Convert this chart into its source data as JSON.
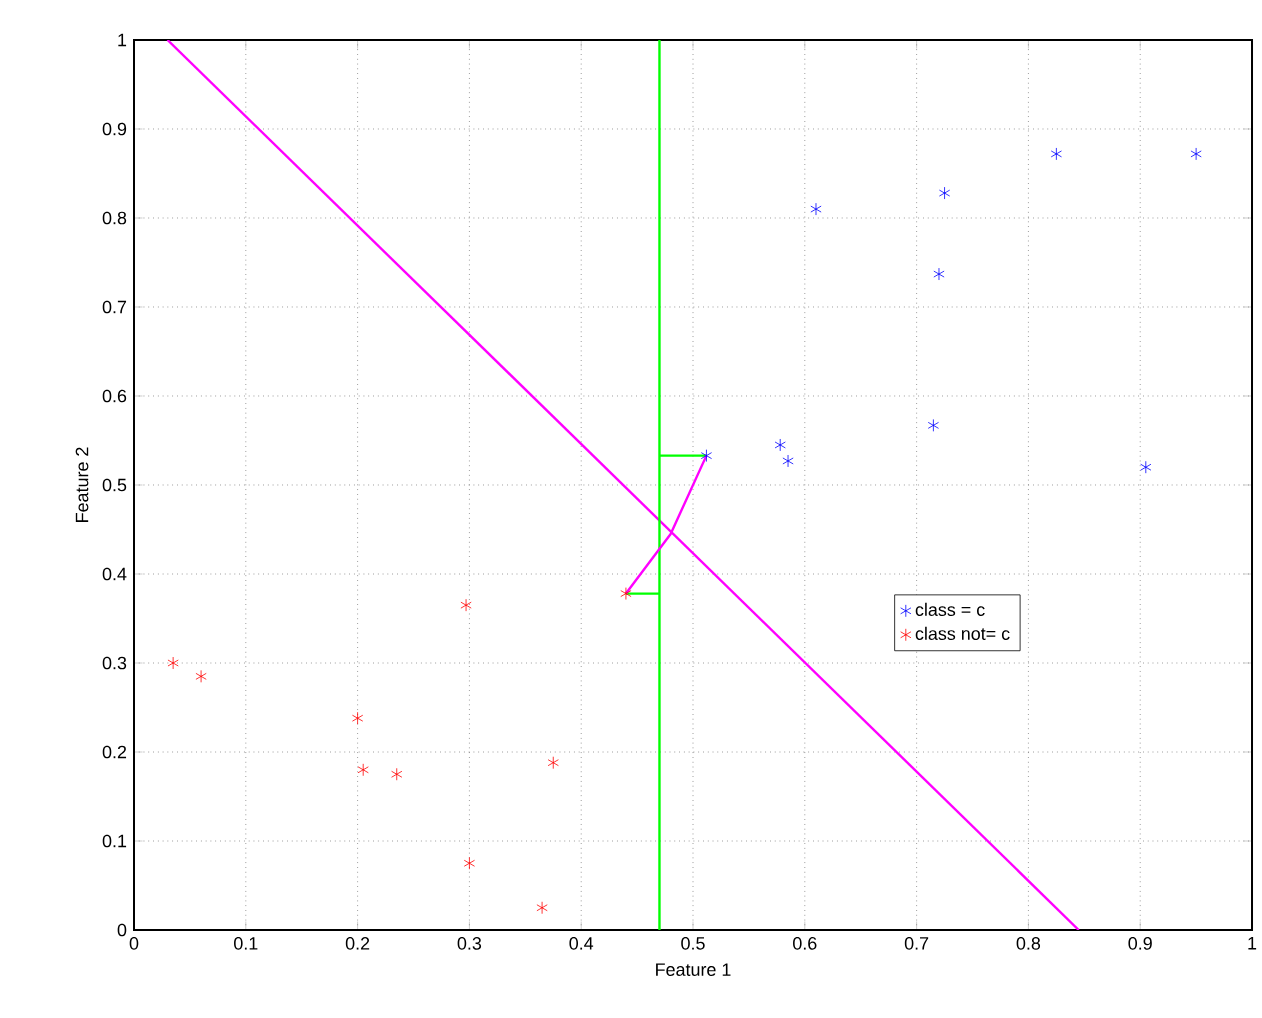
{
  "chart_data": {
    "type": "scatter",
    "xlabel": "Feature 1",
    "ylabel": "Feature 2",
    "xlim": [
      0,
      1
    ],
    "ylim": [
      0,
      1
    ],
    "xticks": [
      0,
      0.1,
      0.2,
      0.3,
      0.4,
      0.5,
      0.6,
      0.7,
      0.8,
      0.9,
      1
    ],
    "yticks": [
      0,
      0.1,
      0.2,
      0.3,
      0.4,
      0.5,
      0.6,
      0.7,
      0.8,
      0.9,
      1
    ],
    "grid": true,
    "legend": "right",
    "marker": "cross",
    "series": [
      {
        "name": "class = c",
        "color": "#0000ff",
        "x": [
          0.512,
          0.578,
          0.585,
          0.61,
          0.715,
          0.72,
          0.725,
          0.825,
          0.905,
          0.95
        ],
        "values": [
          0.533,
          0.545,
          0.527,
          0.81,
          0.567,
          0.737,
          0.828,
          0.872,
          0.52,
          0.872
        ]
      },
      {
        "name": "class not= c",
        "color": "#ff0000",
        "x": [
          0.035,
          0.06,
          0.2,
          0.205,
          0.235,
          0.297,
          0.3,
          0.365,
          0.375,
          0.44
        ],
        "values": [
          0.3,
          0.285,
          0.238,
          0.18,
          0.175,
          0.365,
          0.075,
          0.025,
          0.188,
          0.378
        ]
      },
      {
        "type": "line",
        "marker": "none",
        "line_style": "solid",
        "color": "#ff00ff",
        "x": [
          0.03,
          0.845
        ],
        "values": [
          1,
          0
        ]
      },
      {
        "type": "line",
        "marker": "none",
        "line_style": "solid",
        "color": "#00ff00",
        "x": [
          0.47,
          0.47
        ],
        "values": [
          0,
          1
        ]
      },
      {
        "type": "line",
        "marker": "none",
        "line_style": "solid",
        "color": "#00ff00",
        "x": [
          0.47,
          0.512
        ],
        "values": [
          0.533,
          0.533
        ]
      },
      {
        "type": "line",
        "marker": "none",
        "line_style": "solid",
        "color": "#00ff00",
        "x": [
          0.44,
          0.47
        ],
        "values": [
          0.378,
          0.378
        ]
      },
      {
        "type": "line",
        "marker": "none",
        "line_style": "solid",
        "color": "#ff00ff",
        "x": [
          0.44,
          0.48,
          0.512
        ],
        "values": [
          0.378,
          0.445,
          0.533
        ]
      }
    ]
  }
}
